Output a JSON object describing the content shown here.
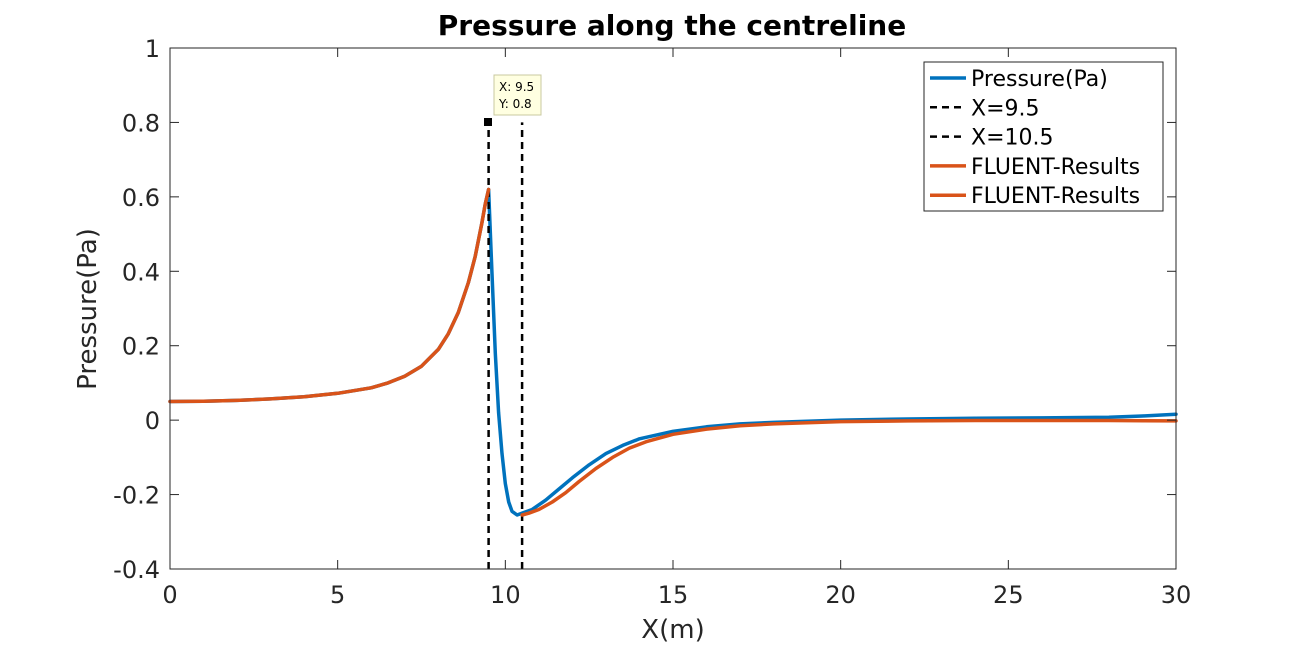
{
  "chart_data": {
    "type": "line",
    "title": "Pressure along the centreline",
    "xlabel": "X(m)",
    "ylabel": "Pressure(Pa)",
    "xlim": [
      0,
      30
    ],
    "ylim": [
      -0.4,
      1
    ],
    "xticks": [
      0,
      5,
      10,
      15,
      20,
      25,
      30
    ],
    "yticks": [
      -0.4,
      -0.2,
      0,
      0.2,
      0.4,
      0.6,
      0.8,
      1
    ],
    "xtick_labels": [
      "0",
      "5",
      "10",
      "15",
      "20",
      "25",
      "30"
    ],
    "ytick_labels": [
      "-0.4",
      "-0.2",
      "0",
      "0.2",
      "0.4",
      "0.6",
      "0.8",
      "1"
    ],
    "grid": false,
    "legend_position": "top-right",
    "series": [
      {
        "name": "Pressure(Pa)",
        "color": "#0072BD",
        "style": "solid",
        "x": [
          0,
          1,
          2,
          3,
          4,
          5,
          6,
          6.5,
          7,
          7.5,
          8,
          8.3,
          8.6,
          8.9,
          9.1,
          9.3,
          9.4,
          9.5,
          9.6,
          9.7,
          9.8,
          9.9,
          10.0,
          10.1,
          10.2,
          10.35,
          10.5,
          10.8,
          11.2,
          11.6,
          12,
          12.5,
          13,
          13.5,
          14,
          15,
          16,
          17,
          18,
          20,
          22,
          24,
          26,
          28,
          29,
          30
        ],
        "y": [
          0.05,
          0.051,
          0.053,
          0.057,
          0.063,
          0.072,
          0.087,
          0.1,
          0.118,
          0.145,
          0.19,
          0.232,
          0.29,
          0.37,
          0.44,
          0.53,
          0.58,
          0.62,
          0.4,
          0.18,
          0.02,
          -0.09,
          -0.17,
          -0.22,
          -0.245,
          -0.255,
          -0.25,
          -0.24,
          -0.215,
          -0.185,
          -0.155,
          -0.12,
          -0.09,
          -0.068,
          -0.05,
          -0.03,
          -0.018,
          -0.01,
          -0.006,
          0,
          0.003,
          0.005,
          0.006,
          0.008,
          0.011,
          0.016
        ]
      },
      {
        "name": "X=9.5",
        "color": "#000000",
        "style": "dashed",
        "x": [
          9.5,
          9.5
        ],
        "y": [
          -0.4,
          0.8
        ]
      },
      {
        "name": "X=10.5",
        "color": "#000000",
        "style": "dashed",
        "x": [
          10.5,
          10.5
        ],
        "y": [
          -0.4,
          0.8
        ]
      },
      {
        "name": "FLUENT-Results",
        "color": "#D95319",
        "style": "solid",
        "x": [
          0,
          1,
          2,
          3,
          4,
          5,
          6,
          6.5,
          7,
          7.5,
          8,
          8.3,
          8.6,
          8.9,
          9.1,
          9.3,
          9.4,
          9.5
        ],
        "y": [
          0.05,
          0.051,
          0.053,
          0.057,
          0.063,
          0.072,
          0.087,
          0.1,
          0.118,
          0.145,
          0.19,
          0.232,
          0.29,
          0.37,
          0.44,
          0.53,
          0.58,
          0.62
        ]
      },
      {
        "name": "FLUENT-Results",
        "color": "#D95319",
        "style": "solid",
        "x": [
          10.5,
          10.7,
          11,
          11.4,
          11.8,
          12.2,
          12.7,
          13.2,
          13.7,
          14.2,
          15,
          16,
          17,
          18,
          20,
          22,
          24,
          26,
          28,
          30
        ],
        "y": [
          -0.255,
          -0.25,
          -0.24,
          -0.22,
          -0.195,
          -0.165,
          -0.13,
          -0.1,
          -0.075,
          -0.058,
          -0.038,
          -0.024,
          -0.015,
          -0.01,
          -0.004,
          -0.002,
          -0.001,
          -0.001,
          -0.001,
          -0.002
        ]
      }
    ],
    "datatip": {
      "x": 9.5,
      "y": 0.8,
      "label_x": "X: 9.5",
      "label_y": "Y: 0.8"
    }
  }
}
